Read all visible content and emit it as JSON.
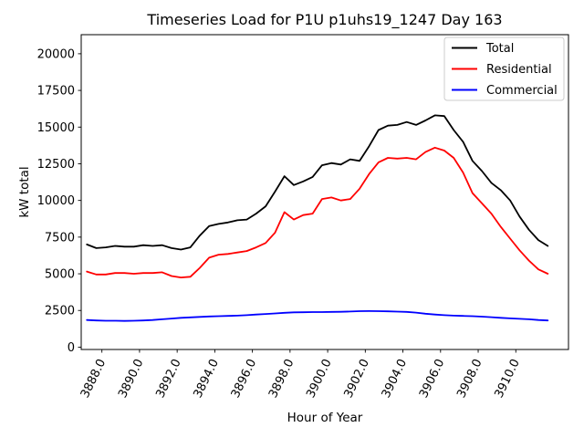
{
  "figure": {
    "title": "Timeseries Load for P1U p1uhs19_1247  Day 163",
    "xlabel": "Hour of Year",
    "ylabel": "kW total"
  },
  "chart_data": {
    "type": "line",
    "title": "Timeseries Load for P1U p1uhs19_1247  Day 163",
    "xlabel": "Hour of Year",
    "ylabel": "kW total",
    "grid": false,
    "legend_position": "upper right",
    "legend_entries": [
      "Total",
      "Residential",
      "Commercial"
    ],
    "xlim": [
      3886.9,
      3912.8
    ],
    "ylim": [
      -160,
      21300
    ],
    "xticks": [
      3888,
      3890,
      3892,
      3894,
      3896,
      3898,
      3900,
      3902,
      3904,
      3906,
      3908,
      3910
    ],
    "xtick_labels": [
      "3888.0",
      "3890.0",
      "3892.0",
      "3894.0",
      "3896.0",
      "3898.0",
      "3900.0",
      "3902.0",
      "3904.0",
      "3906.0",
      "3908.0",
      "3910.0"
    ],
    "yticks": [
      0,
      2500,
      5000,
      7500,
      10000,
      12500,
      15000,
      17500,
      20000
    ],
    "ytick_labels": [
      "0",
      "2500",
      "5000",
      "7500",
      "10000",
      "12500",
      "15000",
      "17500",
      "20000"
    ],
    "x": [
      3887.2,
      3887.7,
      3888.2,
      3888.7,
      3889.2,
      3889.7,
      3890.2,
      3890.7,
      3891.2,
      3891.7,
      3892.2,
      3892.7,
      3893.2,
      3893.7,
      3894.2,
      3894.7,
      3895.2,
      3895.7,
      3896.2,
      3896.7,
      3897.2,
      3897.7,
      3898.2,
      3898.7,
      3899.2,
      3899.7,
      3900.2,
      3900.7,
      3901.2,
      3901.7,
      3902.2,
      3902.7,
      3903.2,
      3903.7,
      3904.2,
      3904.7,
      3905.2,
      3905.7,
      3906.2,
      3906.7,
      3907.2,
      3907.7,
      3908.2,
      3908.7,
      3909.2,
      3909.7,
      3910.2,
      3910.7,
      3911.2,
      3911.7
    ],
    "series": [
      {
        "name": "Total",
        "color": "#000000",
        "values": [
          7000,
          6750,
          6800,
          6900,
          6850,
          6850,
          6950,
          6900,
          6950,
          6750,
          6650,
          6800,
          7600,
          8250,
          8400,
          8500,
          8650,
          8700,
          9100,
          9600,
          10600,
          11650,
          11050,
          11300,
          11600,
          12400,
          12550,
          12450,
          12800,
          12700,
          13700,
          14800,
          15100,
          15150,
          15350,
          15150,
          15450,
          15800,
          15750,
          14800,
          14000,
          12700,
          12000,
          11200,
          10700,
          10000,
          8900,
          8000,
          7300,
          6900
        ]
      },
      {
        "name": "Residential",
        "color": "#ff0000",
        "values": [
          5150,
          4950,
          4950,
          5050,
          5050,
          5000,
          5050,
          5050,
          5100,
          4850,
          4750,
          4800,
          5400,
          6100,
          6300,
          6350,
          6450,
          6550,
          6800,
          7100,
          7800,
          9200,
          8700,
          9000,
          9100,
          10100,
          10200,
          10000,
          10100,
          10800,
          11800,
          12600,
          12900,
          12850,
          12900,
          12800,
          13300,
          13600,
          13400,
          12900,
          11900,
          10500,
          9800,
          9100,
          8200,
          7400,
          6600,
          5900,
          5300,
          5000
        ]
      },
      {
        "name": "Commercial",
        "color": "#0000ff",
        "values": [
          1850,
          1820,
          1800,
          1800,
          1790,
          1800,
          1820,
          1850,
          1900,
          1950,
          2000,
          2030,
          2060,
          2090,
          2110,
          2130,
          2150,
          2180,
          2220,
          2260,
          2300,
          2340,
          2370,
          2380,
          2390,
          2390,
          2400,
          2410,
          2430,
          2450,
          2460,
          2450,
          2440,
          2420,
          2400,
          2350,
          2280,
          2220,
          2180,
          2150,
          2130,
          2110,
          2080,
          2040,
          2000,
          1960,
          1930,
          1900,
          1850,
          1820
        ]
      }
    ],
    "colors": {
      "spine": "#000000",
      "legend_border": "#cccccc",
      "background": "#ffffff"
    }
  }
}
